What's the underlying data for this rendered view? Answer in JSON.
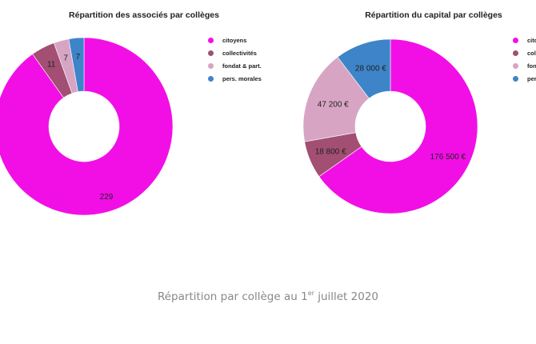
{
  "colors": {
    "citoyens": "#f20fe6",
    "collectivites": "#a24f73",
    "fondat": "#d7a5c3",
    "morales": "#3d85c8"
  },
  "chart_data": [
    {
      "type": "pie",
      "variant": "donut",
      "title": "Répartition des associés par collèges",
      "categories": [
        "citoyens",
        "collectivités",
        "fondat & part.",
        "pers. morales"
      ],
      "values": [
        229,
        11,
        7,
        7
      ],
      "data_labels": [
        "229",
        "11",
        "7",
        "7"
      ],
      "legend_position": "right"
    },
    {
      "type": "pie",
      "variant": "donut",
      "title": "Répartition du capital par collèges",
      "categories": [
        "citoyens",
        "collectivités",
        "fondat & part.",
        "pers. morales"
      ],
      "values": [
        176500,
        18800,
        47200,
        28000
      ],
      "data_labels": [
        "176 500 €",
        "18 800 €",
        "47 200 €",
        "28 000 €"
      ],
      "legend_position": "right"
    }
  ],
  "caption": {
    "before": "Répartition par collège au 1",
    "sup": "er",
    "after": " juillet 2020"
  }
}
